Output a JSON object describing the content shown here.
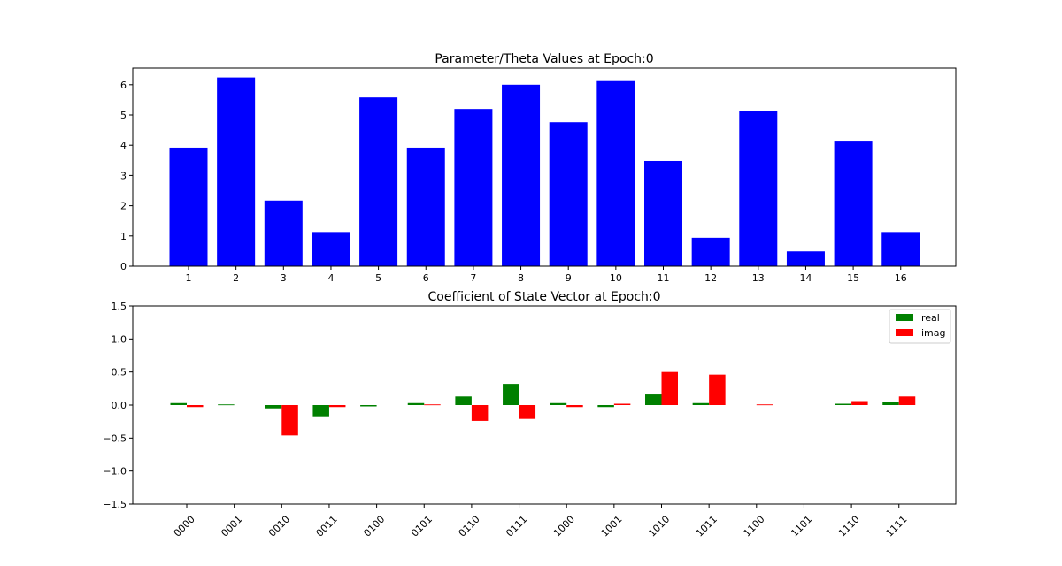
{
  "chart_data": [
    {
      "type": "bar",
      "title": "Parameter/Theta Values at Epoch:0",
      "xlabel": "",
      "ylabel": "",
      "categories": [
        "1",
        "2",
        "3",
        "4",
        "5",
        "6",
        "7",
        "8",
        "9",
        "10",
        "11",
        "12",
        "13",
        "14",
        "15",
        "16"
      ],
      "values": [
        3.92,
        6.24,
        2.17,
        1.13,
        5.58,
        3.92,
        5.2,
        6.0,
        4.76,
        6.12,
        3.48,
        0.94,
        5.13,
        0.49,
        4.15,
        1.13
      ],
      "ylim": [
        0,
        6.55
      ],
      "yticks": [
        "0",
        "1",
        "2",
        "3",
        "4",
        "5",
        "6"
      ],
      "color": "#0000ff",
      "grid": false
    },
    {
      "type": "bar",
      "title": "Coefficient of State Vector at Epoch:0",
      "xlabel": "",
      "ylabel": "",
      "categories": [
        "0000",
        "0001",
        "0010",
        "0011",
        "0100",
        "0101",
        "0110",
        "0111",
        "1000",
        "1001",
        "1010",
        "1011",
        "1100",
        "1101",
        "1110",
        "1111"
      ],
      "series": [
        {
          "name": "real",
          "color": "#008000",
          "values": [
            0.03,
            0.01,
            -0.05,
            -0.17,
            -0.02,
            0.03,
            0.13,
            0.32,
            0.03,
            -0.03,
            0.16,
            0.03,
            0.0,
            0.0,
            0.02,
            0.05
          ]
        },
        {
          "name": "imag",
          "color": "#ff0000",
          "values": [
            -0.03,
            0.0,
            -0.46,
            -0.03,
            0.0,
            0.01,
            -0.24,
            -0.21,
            -0.03,
            0.02,
            0.5,
            0.46,
            0.01,
            0.0,
            0.06,
            0.13
          ]
        }
      ],
      "ylim": [
        -1.5,
        1.5
      ],
      "yticks": [
        "−1.5",
        "−1.0",
        "−0.5",
        "0.0",
        "0.5",
        "1.0",
        "1.5"
      ],
      "legend_position": "top-right",
      "grid": false
    }
  ]
}
